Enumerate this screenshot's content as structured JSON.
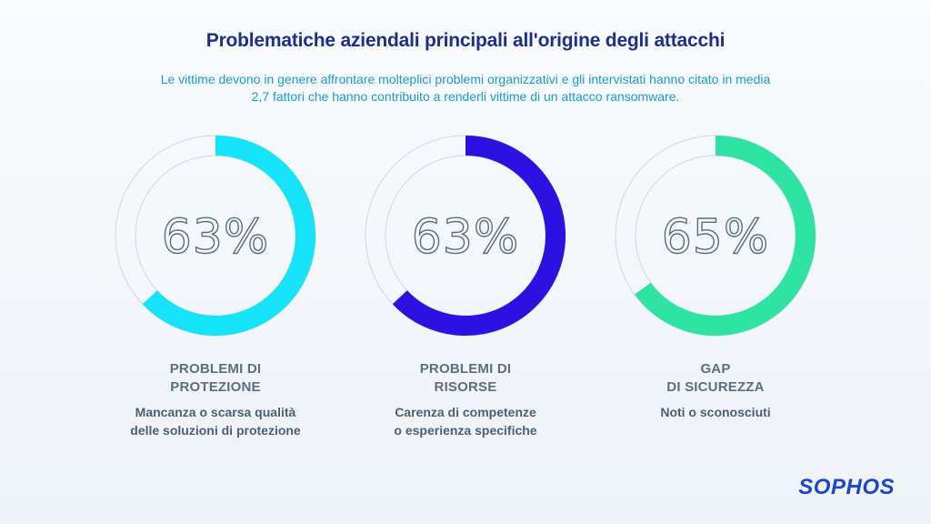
{
  "header": {
    "title": "Problematiche aziendali principali all'origine degli attacchi",
    "subtitle_line1": "Le vittime devono in genere affrontare molteplici problemi organizzativi e gli intervistati hanno citato in media",
    "subtitle_line2": "2,7 fattori che hanno contribuito a renderli vittime di un attacco ransomware."
  },
  "chart_data": {
    "type": "pie",
    "variant": "donut",
    "values": [
      63,
      63,
      65
    ],
    "labels": [
      "63%",
      "63%",
      "65%"
    ],
    "colors": [
      "#16e3f8",
      "#2c12e0",
      "#2ee3a4"
    ],
    "track_color": "#d4dde6",
    "categories": [
      {
        "title_line1": "PROBLEMI DI",
        "title_line2": "PROTEZIONE",
        "desc_line1": "Mancanza o scarsa qualità",
        "desc_line2": "delle soluzioni di protezione"
      },
      {
        "title_line1": "PROBLEMI DI",
        "title_line2": "RISORSE",
        "desc_line1": "Carenza di competenze",
        "desc_line2": "o esperienza specifiche"
      },
      {
        "title_line1": "GAP",
        "title_line2": "DI SICUREZZA",
        "desc_line1": "Noti o sconosciuti",
        "desc_line2": ""
      }
    ]
  },
  "brand": {
    "logo_text": "SOPHOS",
    "color": "#1f45c9"
  }
}
